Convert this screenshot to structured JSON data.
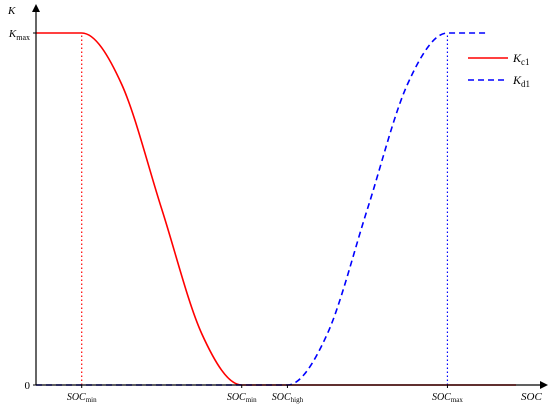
{
  "chart_data": {
    "type": "line",
    "title": "",
    "xlabel": "SOC",
    "ylabel": "K",
    "y_ticks": [
      {
        "label_main": "K",
        "label_sub": "max",
        "value": 1
      },
      {
        "label_main": "0",
        "label_sub": "",
        "value": 0
      }
    ],
    "x_markers": [
      {
        "label_main": "SOC",
        "label_sub": "min",
        "value": 0.1,
        "guide": "red-dotted"
      },
      {
        "label_main": "SOC",
        "label_sub": "min",
        "value": 0.45,
        "guide": "none"
      },
      {
        "label_main": "SOC",
        "label_sub": "high",
        "value": 0.55,
        "guide": "none"
      },
      {
        "label_main": "SOC",
        "label_sub": "max",
        "value": 0.9,
        "guide": "blue-dotted"
      }
    ],
    "xlim": [
      0,
      1.05
    ],
    "ylim": [
      0,
      1.0
    ],
    "grid": false,
    "legend_position": "top-right",
    "series": [
      {
        "name_main": "K",
        "name_sub": "c1",
        "color": "#ff0000",
        "style": "solid",
        "points": [
          {
            "x": 0.0,
            "y": 1.0
          },
          {
            "x": 0.1,
            "y": 1.0
          },
          {
            "x": 0.1875,
            "y": 0.854
          },
          {
            "x": 0.275,
            "y": 0.5
          },
          {
            "x": 0.3625,
            "y": 0.146
          },
          {
            "x": 0.45,
            "y": 0.0
          },
          {
            "x": 1.05,
            "y": 0.0
          }
        ]
      },
      {
        "name_main": "K",
        "name_sub": "d1",
        "color": "#0000ff",
        "style": "dashed",
        "points": [
          {
            "x": 0.0,
            "y": 0.0
          },
          {
            "x": 0.55,
            "y": 0.0
          },
          {
            "x": 0.6375,
            "y": 0.146
          },
          {
            "x": 0.725,
            "y": 0.5
          },
          {
            "x": 0.8125,
            "y": 0.854
          },
          {
            "x": 0.9,
            "y": 1.0
          },
          {
            "x": 0.99,
            "y": 1.0
          }
        ]
      }
    ]
  }
}
